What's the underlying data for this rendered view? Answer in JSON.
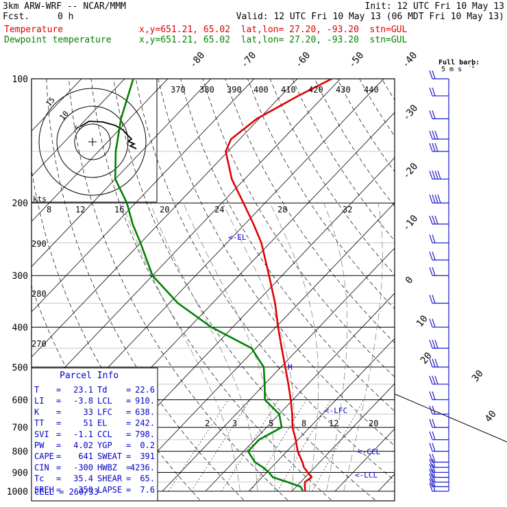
{
  "header": {
    "model": "3km ARW-WRF -- NCAR/MMM",
    "init": "Init: 12 UTC Fri 10 May 13",
    "fcst_label": "Fcst.",
    "fcst_value": "0 h",
    "valid": "Valid: 12 UTC Fri 10 May 13 (06 MDT Fri 10 May 13)",
    "temp_label": "Temperature",
    "dew_label": "Dewpoint temperature",
    "temp_info": "x,y=651.21, 65.02  lat,lon= 27.20, -93.20  stn=GUL",
    "dew_info": "x,y=651.21, 65.02  lat,lon= 27.20, -93.20  stn=GUL"
  },
  "colors": {
    "temperature": "#e00000",
    "dewpoint": "#008000",
    "info": "#0000cc",
    "grid": "#000000"
  },
  "barb_legend": {
    "title": "Full barb:",
    "value": "5 m s",
    "exp": "-1"
  },
  "hodograph": {
    "ring_labels": [
      "15",
      "10",
      "5"
    ],
    "units": "kts"
  },
  "chart_data": {
    "type": "line",
    "title": "",
    "xlabel": "",
    "ylabel": "",
    "pressure_ticks": [
      100,
      200,
      300,
      400,
      500,
      600,
      700,
      800,
      900,
      1000
    ],
    "temperature_ticks": [
      -80,
      -70,
      -60,
      -50,
      -40,
      -30,
      -20,
      -10,
      0,
      10,
      20,
      30,
      40
    ],
    "mixing_ratio_ticks": [
      "8",
      "12",
      "16",
      "20",
      "24",
      "28",
      "32"
    ],
    "mixing_ratio_ticks_low": [
      "2",
      "3",
      "5",
      "8",
      "12",
      "20"
    ],
    "theta_e_ticks": [
      "370",
      "380",
      "390",
      "400",
      "410",
      "420",
      "430",
      "440"
    ],
    "theta_ticks": [
      "290",
      "280",
      "270"
    ],
    "annotations": [
      "<-EL",
      "<-LFC",
      "<-CCL",
      "<-LCL",
      "M"
    ],
    "series": [
      {
        "name": "Temperature",
        "pressure": [
          1000,
          975,
          950,
          925,
          900,
          875,
          850,
          800,
          750,
          700,
          650,
          600,
          550,
          500,
          450,
          400,
          350,
          300,
          250,
          225,
          200,
          175,
          150,
          140,
          125,
          110,
          100
        ],
        "values": [
          23.1,
          22.0,
          21.0,
          21.5,
          19.5,
          17.5,
          16.0,
          12.5,
          9.5,
          6.0,
          3.0,
          -0.5,
          -4.5,
          -9.0,
          -14.0,
          -19.5,
          -25.5,
          -33.0,
          -42.0,
          -48.0,
          -55.0,
          -63.0,
          -70.5,
          -72.0,
          -70.5,
          -66.0,
          -62.0
        ]
      },
      {
        "name": "Dewpoint temperature",
        "pressure": [
          1000,
          975,
          950,
          925,
          900,
          875,
          850,
          800,
          750,
          700,
          650,
          600,
          550,
          500,
          450,
          400,
          350,
          300,
          250,
          225,
          200,
          175,
          150,
          125,
          100
        ],
        "values": [
          22.6,
          21.0,
          17.0,
          12.5,
          10.5,
          8.0,
          5.0,
          1.0,
          1.0,
          3.5,
          0.0,
          -6.5,
          -10.0,
          -14.0,
          -21.0,
          -35.0,
          -48.0,
          -60.0,
          -70.0,
          -76.0,
          -82.0,
          -90.0,
          -96.0,
          -102.0,
          -108.0
        ]
      }
    ]
  },
  "wind_barbs": {
    "pressure": [
      1000,
      975,
      950,
      925,
      900,
      875,
      850,
      800,
      750,
      700,
      650,
      600,
      550,
      500,
      450,
      400,
      350,
      300,
      275,
      250,
      225,
      200,
      175,
      150,
      140,
      125,
      110,
      100
    ],
    "speed_ms": [
      8,
      9,
      10,
      11,
      12,
      12,
      12,
      10,
      9,
      9,
      10,
      12,
      14,
      15,
      13,
      10,
      9,
      8,
      9,
      11,
      13,
      18,
      18,
      15,
      14,
      11,
      10,
      8
    ]
  },
  "parcel_info": {
    "title": "Parcel Info",
    "rows": [
      {
        "k1": "T",
        "v1": "23.1",
        "k2": "Td",
        "v2": "22.6"
      },
      {
        "k1": "LI",
        "v1": "-3.8",
        "k2": "LCL",
        "v2": "910."
      },
      {
        "k1": "K",
        "v1": "33",
        "k2": "LFC",
        "v2": "638."
      },
      {
        "k1": "TT",
        "v1": "51",
        "k2": "EL",
        "v2": "242."
      },
      {
        "k1": "SVI",
        "v1": "-1.1",
        "k2": "CCL",
        "v2": "798."
      },
      {
        "k1": "PW",
        "v1": "4.02",
        "k2": "YGP",
        "v2": "0.2"
      },
      {
        "k1": "CAPE",
        "v1": "641",
        "k2": "SWEAT",
        "v2": "391"
      },
      {
        "k1": "CIN",
        "v1": "-300",
        "k2": "HWBZ",
        "v2": "4236."
      },
      {
        "k1": "Tc",
        "v1": "35.4",
        "k2": "SHEAR",
        "v2": "65."
      },
      {
        "k1": "SREH",
        "v1": "350",
        "k2": "LAPSE",
        "v2": "7.6"
      }
    ],
    "cell": "CELL = 260/33"
  }
}
